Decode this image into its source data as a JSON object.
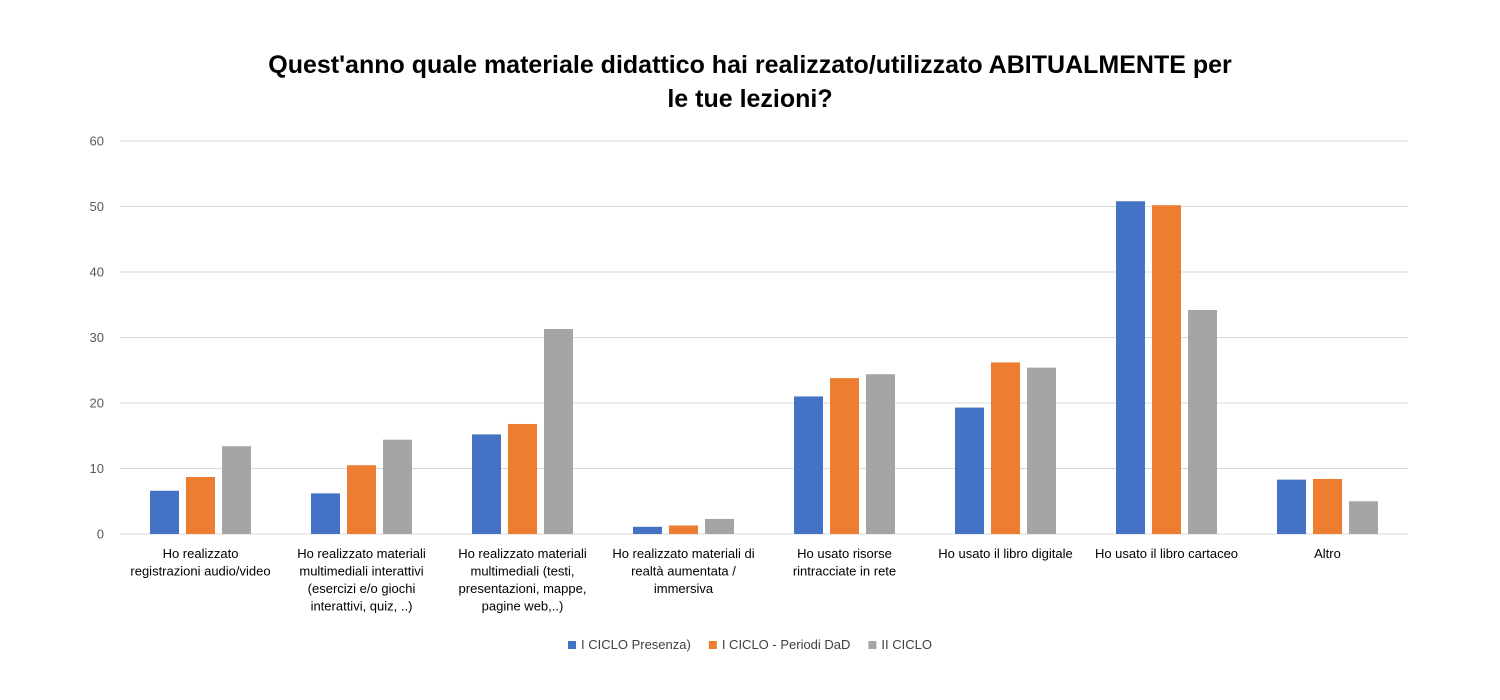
{
  "chart_data": {
    "type": "bar",
    "title_lines": [
      "Quest'anno quale materiale didattico hai realizzato/utilizzato ABITUALMENTE  per",
      "le tue lezioni?"
    ],
    "categories": [
      [
        "Ho realizzato",
        "registrazioni audio/video"
      ],
      [
        "Ho realizzato materiali",
        "multimediali interattivi",
        "(esercizi e/o giochi",
        "interattivi, quiz, ..)"
      ],
      [
        "Ho realizzato materiali",
        "multimediali (testi,",
        "presentazioni, mappe,",
        "pagine web,..)"
      ],
      [
        "Ho realizzato materiali di",
        "realtà aumentata /",
        "immersiva"
      ],
      [
        "Ho usato risorse",
        "rintracciate in rete"
      ],
      [
        "Ho usato il libro digitale"
      ],
      [
        "Ho usato il libro cartaceo"
      ],
      [
        "Altro"
      ]
    ],
    "series": [
      {
        "name": "I CICLO Presenza)",
        "color": "#4472c4",
        "values": [
          6.6,
          6.2,
          15.2,
          1.1,
          21.0,
          19.3,
          50.8,
          8.3
        ]
      },
      {
        "name": "I CICLO - Periodi DaD",
        "color": "#ed7d31",
        "values": [
          8.7,
          10.5,
          16.8,
          1.3,
          23.8,
          26.2,
          50.2,
          8.4
        ]
      },
      {
        "name": "II CICLO",
        "color": "#a5a5a5",
        "values": [
          13.4,
          14.4,
          31.3,
          2.3,
          24.4,
          25.4,
          34.2,
          5.0
        ]
      }
    ],
    "ylim": [
      0,
      60
    ],
    "yticks": [
      0,
      10,
      20,
      30,
      40,
      50,
      60
    ],
    "grid": true,
    "legend_position": "bottom",
    "gridline_color": "#d9d9d9"
  }
}
